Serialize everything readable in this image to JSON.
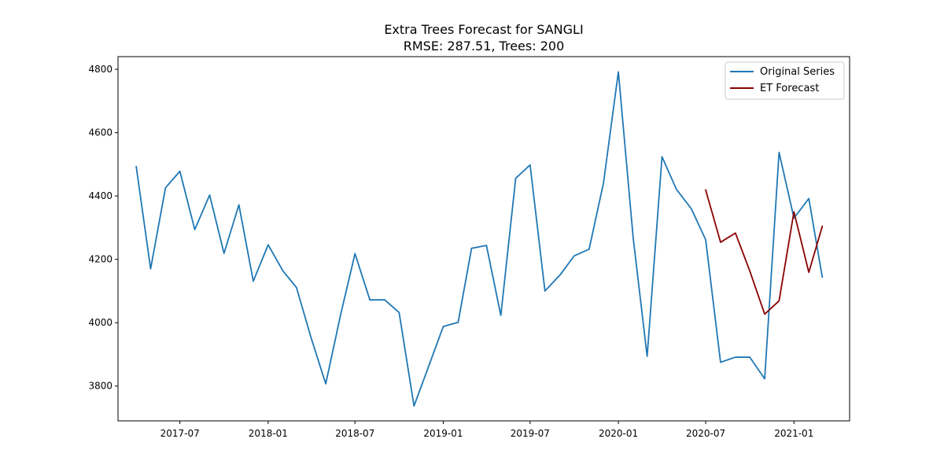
{
  "chart_data": {
    "type": "line",
    "title": "Extra Trees Forecast for SANGLI",
    "subtitle": "RMSE: 287.51, Trees: 200",
    "xlabel": "",
    "ylabel": "",
    "ylim": [
      3690,
      4840
    ],
    "xlim": [
      "2017-02-22",
      "2021-04-27"
    ],
    "yticks": [
      3800,
      4000,
      4200,
      4400,
      4600,
      4800
    ],
    "xticks": [
      "2017-07",
      "2018-01",
      "2018-07",
      "2019-01",
      "2019-07",
      "2020-01",
      "2020-07",
      "2021-01"
    ],
    "grid": false,
    "legend_position": "top-right",
    "series": [
      {
        "name": "Original Series",
        "color": "#1f77b4",
        "x": [
          "2017-04",
          "2017-05",
          "2017-06",
          "2017-07",
          "2017-08",
          "2017-09",
          "2017-10",
          "2017-11",
          "2017-12",
          "2018-01",
          "2018-02",
          "2018-03",
          "2018-04",
          "2018-05",
          "2018-06",
          "2018-07",
          "2018-08",
          "2018-09",
          "2018-10",
          "2018-11",
          "2018-12",
          "2019-01",
          "2019-02",
          "2019-03",
          "2019-04",
          "2019-05",
          "2019-06",
          "2019-07",
          "2019-08",
          "2019-09",
          "2019-10",
          "2019-11",
          "2019-12",
          "2020-01",
          "2020-02",
          "2020-03",
          "2020-04",
          "2020-05",
          "2020-06",
          "2020-07",
          "2020-08",
          "2020-09",
          "2020-10",
          "2020-11",
          "2020-12",
          "2021-01",
          "2021-02",
          "2021-03"
        ],
        "values": [
          4493,
          4170,
          4426,
          4478,
          4294,
          4403,
          4219,
          4372,
          4131,
          4246,
          4163,
          4111,
          3950,
          3807,
          4025,
          4218,
          4072,
          4072,
          4032,
          3737,
          3860,
          3988,
          4001,
          4235,
          4244,
          4023,
          4456,
          4498,
          4100,
          4150,
          4211,
          4232,
          4441,
          4792,
          4266,
          3894,
          4524,
          4421,
          4360,
          4262,
          3875,
          3891,
          3891,
          3823,
          4538,
          4330,
          4392,
          4144
        ]
      },
      {
        "name": "ET Forecast",
        "color": "#8b0000",
        "x": [
          "2020-07",
          "2020-08",
          "2020-09",
          "2020-10",
          "2020-11",
          "2020-12",
          "2021-01",
          "2021-02",
          "2021-03"
        ],
        "values": [
          4419,
          4254,
          4283,
          4163,
          4027,
          4069,
          4350,
          4159,
          4304
        ]
      }
    ]
  }
}
